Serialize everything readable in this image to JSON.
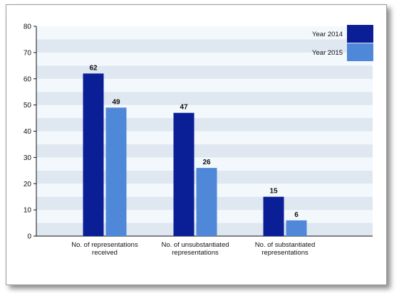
{
  "chart_data": {
    "type": "bar",
    "categories": [
      [
        "No. of representations",
        "received"
      ],
      [
        "No. of unsubstantiated",
        "representations"
      ],
      [
        "No. of substantiated",
        "representations"
      ]
    ],
    "series": [
      {
        "name": "Year 2014",
        "values": [
          62,
          47,
          15
        ],
        "color": "#0a1e96"
      },
      {
        "name": "Year 2015",
        "values": [
          49,
          26,
          6
        ],
        "color": "#4f88d8"
      }
    ],
    "ylim": [
      0,
      80
    ],
    "yticks": [
      0,
      10,
      20,
      30,
      40,
      50,
      60,
      70,
      80
    ],
    "band_color": "#dfe7f0",
    "band_alt_color": "#f3f8fd",
    "grid": true,
    "legend_position": "top-right"
  }
}
